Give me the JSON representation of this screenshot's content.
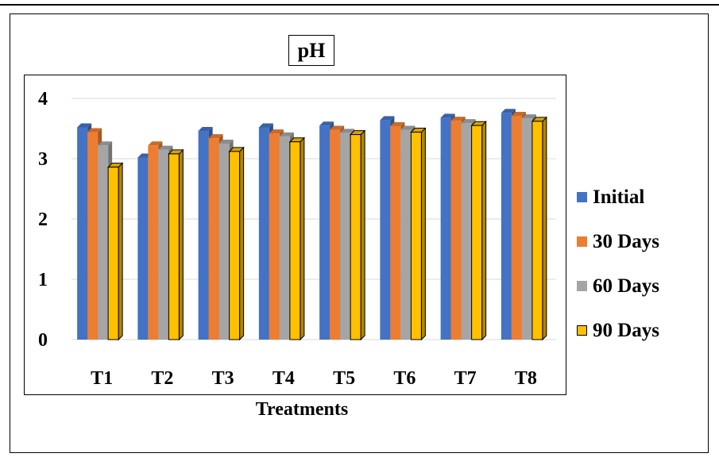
{
  "chart_data": {
    "type": "bar",
    "title": "pH",
    "xlabel": "Treatments",
    "ylabel": "",
    "ylim": [
      0,
      4
    ],
    "yticks": [
      "0",
      "1",
      "2",
      "3",
      "4"
    ],
    "grid": true,
    "legend_position": "right",
    "categories": [
      "T1",
      "T2",
      "T3",
      "T4",
      "T5",
      "T6",
      "T7",
      "T8"
    ],
    "series": [
      {
        "name": "Initial",
        "color": "#4472C4",
        "values": [
          3.52,
          3.02,
          3.46,
          3.52,
          3.55,
          3.64,
          3.68,
          3.76
        ]
      },
      {
        "name": "30 Days",
        "color": "#ED7D31",
        "values": [
          3.44,
          3.22,
          3.34,
          3.42,
          3.48,
          3.54,
          3.63,
          3.71
        ]
      },
      {
        "name": "60 Days",
        "color": "#A5A5A5",
        "values": [
          3.22,
          3.15,
          3.25,
          3.37,
          3.43,
          3.48,
          3.59,
          3.67
        ]
      },
      {
        "name": "90 Days",
        "color": "#FFC000",
        "values": [
          2.86,
          3.08,
          3.12,
          3.28,
          3.4,
          3.44,
          3.55,
          3.62
        ]
      }
    ]
  }
}
